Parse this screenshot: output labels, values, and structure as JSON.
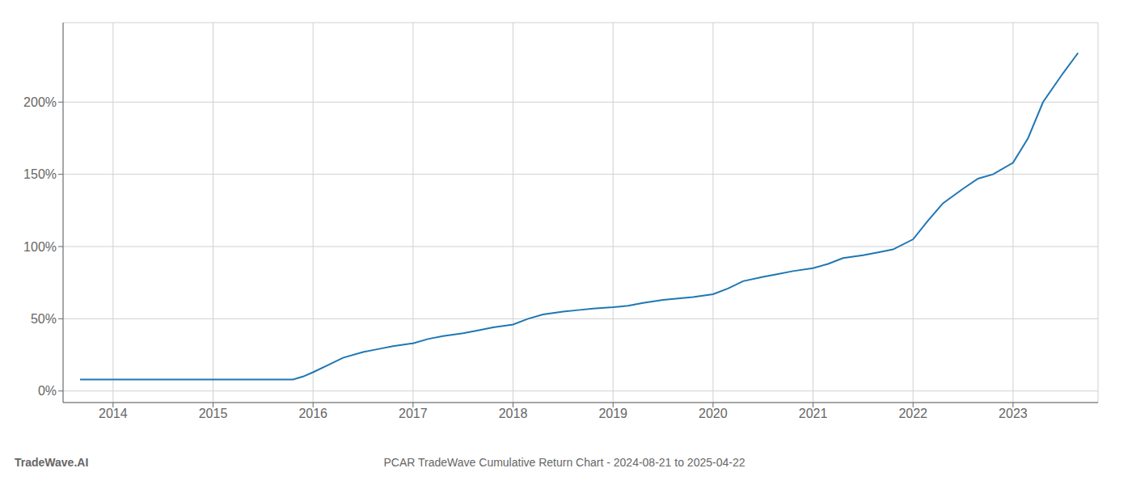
{
  "chart_data": {
    "type": "line",
    "title": "PCAR TradeWave Cumulative Return Chart - 2024-08-21 to 2025-04-22",
    "annotations": [
      "TradeWave.AI"
    ],
    "x": [
      2013.67,
      2014.0,
      2014.15,
      2014.3,
      2014.5,
      2014.65,
      2014.8,
      2015.0,
      2015.15,
      2015.3,
      2015.5,
      2015.65,
      2015.8,
      2015.9,
      2016.0,
      2016.15,
      2016.3,
      2016.5,
      2016.65,
      2016.8,
      2017.0,
      2017.15,
      2017.3,
      2017.5,
      2017.65,
      2017.8,
      2018.0,
      2018.15,
      2018.3,
      2018.5,
      2018.65,
      2018.8,
      2019.0,
      2019.15,
      2019.3,
      2019.5,
      2019.65,
      2019.8,
      2020.0,
      2020.15,
      2020.3,
      2020.5,
      2020.65,
      2020.8,
      2021.0,
      2021.15,
      2021.3,
      2021.5,
      2021.65,
      2021.8,
      2022.0,
      2022.15,
      2022.3,
      2022.5,
      2022.65,
      2022.8,
      2023.0,
      2023.15,
      2023.3,
      2023.5,
      2023.65
    ],
    "values": [
      8,
      8,
      8,
      8,
      8,
      8,
      8,
      8,
      8,
      8,
      8,
      8,
      8,
      10,
      13,
      18,
      23,
      27,
      29,
      31,
      33,
      36,
      38,
      40,
      42,
      44,
      46,
      50,
      53,
      55,
      56,
      57,
      58,
      59,
      61,
      63,
      64,
      65,
      67,
      71,
      76,
      79,
      81,
      83,
      85,
      88,
      92,
      94,
      96,
      98,
      105,
      118,
      130,
      140,
      147,
      150,
      158,
      175,
      200,
      220,
      234
    ],
    "color": "#1f77b4",
    "xlim": [
      2013.5,
      2023.85
    ],
    "xticks": [
      2014,
      2015,
      2016,
      2017,
      2018,
      2019,
      2020,
      2021,
      2022,
      2023
    ],
    "ylim": [
      -8,
      255
    ],
    "yticks": [
      {
        "value": 0,
        "label": "0%"
      },
      {
        "value": 50,
        "label": "50%"
      },
      {
        "value": 100,
        "label": "100%"
      },
      {
        "value": 150,
        "label": "150%"
      },
      {
        "value": 200,
        "label": "200%"
      }
    ],
    "grid": true
  }
}
